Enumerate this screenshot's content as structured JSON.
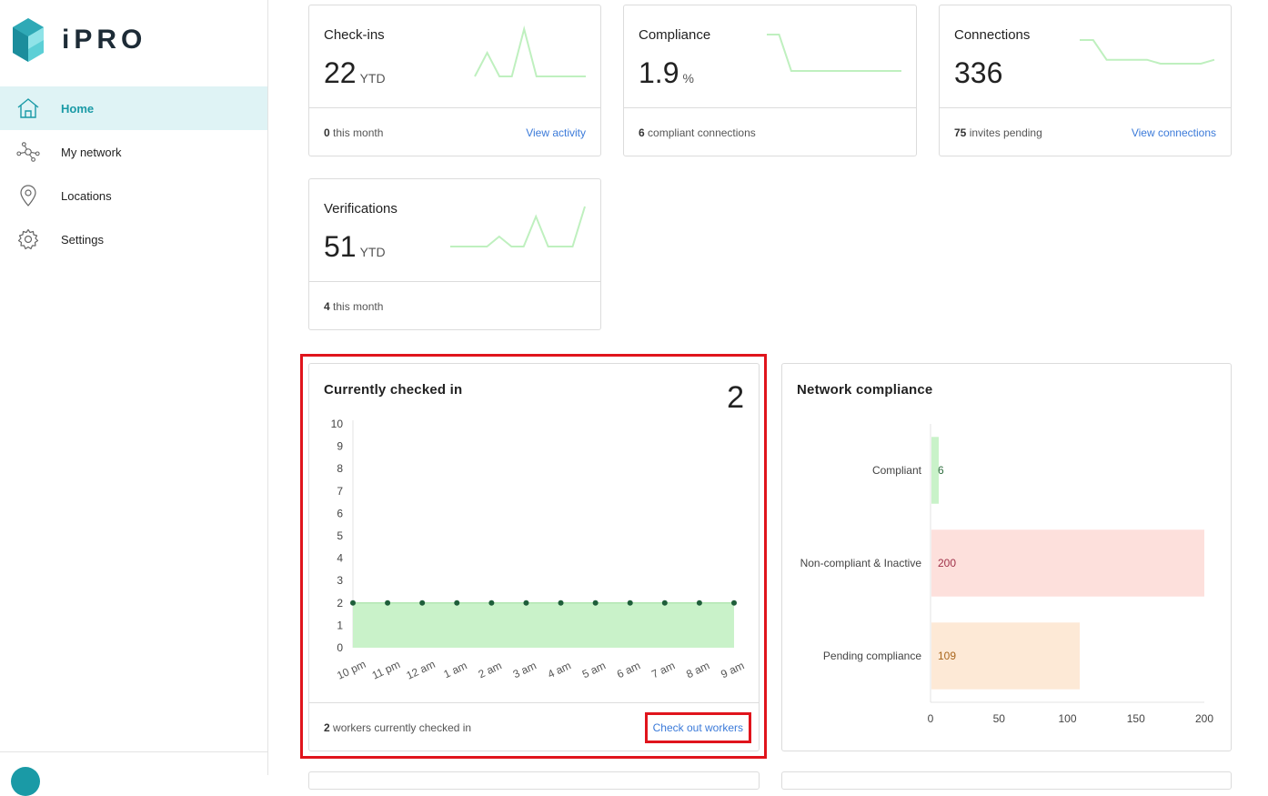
{
  "app": {
    "logo_text": "iPRO"
  },
  "sidebar": {
    "items": [
      {
        "label": "Home",
        "icon": "home-icon",
        "active": true
      },
      {
        "label": "My network",
        "icon": "network-icon",
        "active": false
      },
      {
        "label": "Locations",
        "icon": "location-pin-icon",
        "active": false
      },
      {
        "label": "Settings",
        "icon": "gear-icon",
        "active": false
      }
    ]
  },
  "cards": {
    "checkins": {
      "title": "Check-ins",
      "value": "22",
      "unit": "YTD",
      "footer_count": "0",
      "footer_text": "this month",
      "link": "View activity",
      "spark": [
        0,
        2,
        0,
        0,
        4,
        0,
        0,
        0,
        0,
        0
      ]
    },
    "compliance": {
      "title": "Compliance",
      "value": "1.9",
      "unit": "%",
      "footer_count": "6",
      "footer_text": "compliant connections",
      "spark": [
        10,
        10,
        3,
        3,
        3,
        3,
        3,
        3,
        3,
        3,
        3,
        3
      ]
    },
    "connections": {
      "title": "Connections",
      "value": "336",
      "footer_count": "75",
      "footer_text": "invites pending",
      "link": "View connections",
      "spark": [
        8,
        8,
        3,
        3,
        3,
        3,
        2,
        2,
        2,
        2,
        3
      ]
    },
    "verifications": {
      "title": "Verifications",
      "value": "51",
      "unit": "YTD",
      "footer_count": "4",
      "footer_text": "this month",
      "spark": [
        0,
        0,
        0,
        0,
        1,
        0,
        0,
        3,
        0,
        0,
        0,
        4
      ]
    }
  },
  "checked_in": {
    "title": "Currently checked in",
    "count": "2",
    "footer_count": "2",
    "footer_text": "workers currently checked in",
    "link": "Check out workers"
  },
  "network_compliance": {
    "title": "Network compliance"
  },
  "chart_data": [
    {
      "type": "area",
      "x": [
        "10 pm",
        "11 pm",
        "12 am",
        "1 am",
        "2 am",
        "3 am",
        "4 am",
        "5 am",
        "6 am",
        "7 am",
        "8 am",
        "9 am"
      ],
      "values": [
        2,
        2,
        2,
        2,
        2,
        2,
        2,
        2,
        2,
        2,
        2,
        2
      ],
      "yticks": [
        "0",
        "1",
        "2",
        "3",
        "4",
        "5",
        "6",
        "7",
        "8",
        "9",
        "10"
      ],
      "ylim": [
        0,
        10
      ],
      "fill_color": "#c9f2c9",
      "point_color": "#1e5e3a"
    },
    {
      "type": "bar",
      "orientation": "horizontal",
      "categories": [
        "Compliant",
        "Non-compliant & Inactive",
        "Pending compliance"
      ],
      "values": [
        6,
        200,
        109
      ],
      "value_labels": [
        "6",
        "200",
        "109"
      ],
      "xticks": [
        "0",
        "50",
        "100",
        "150",
        "200"
      ],
      "xlim": [
        0,
        200
      ],
      "colors": [
        "#c9f2c9",
        "#fde0dc",
        "#fde9d6"
      ],
      "label_colors": [
        "#2f6e3f",
        "#a0324a",
        "#a9661c"
      ]
    }
  ]
}
